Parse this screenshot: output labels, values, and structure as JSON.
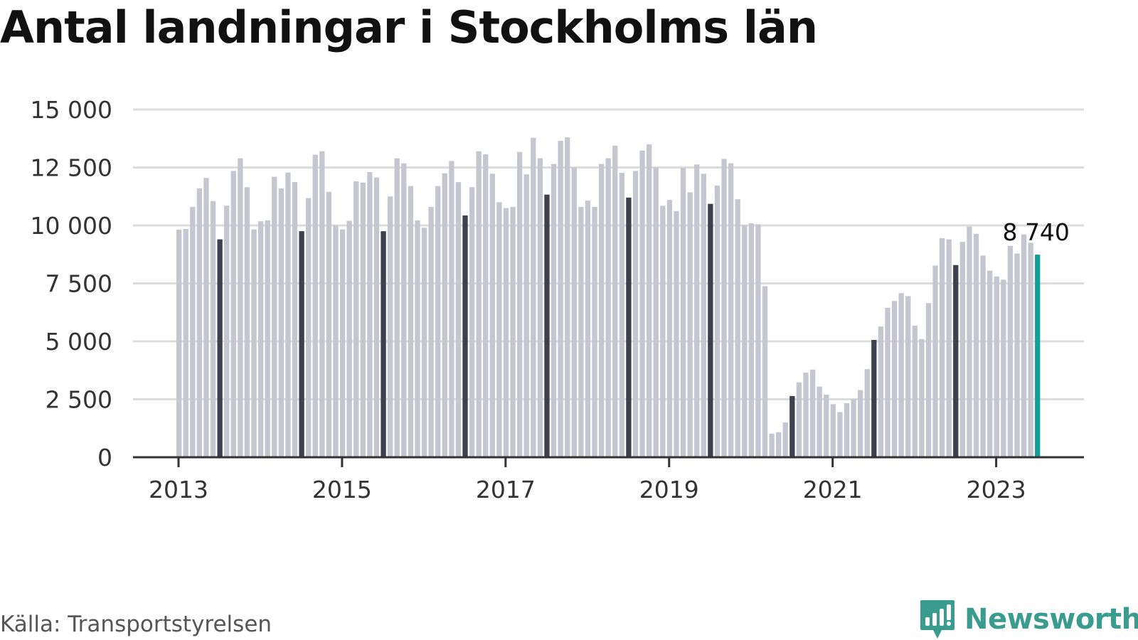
{
  "chart_data": {
    "type": "bar",
    "title": "Antal landningar i Stockholms län",
    "xlabel": "",
    "ylabel": "",
    "start": "2013-01",
    "frequency": "monthly",
    "values": [
      9820,
      9850,
      10800,
      11600,
      12050,
      11050,
      9400,
      10850,
      12350,
      12900,
      11650,
      9830,
      10180,
      10220,
      12100,
      11600,
      12280,
      11870,
      9750,
      11180,
      13050,
      13200,
      11450,
      10000,
      9830,
      10200,
      11900,
      11850,
      12300,
      12070,
      9750,
      11250,
      12900,
      12680,
      11700,
      10220,
      9900,
      10800,
      11700,
      12250,
      12780,
      11870,
      10430,
      11650,
      13200,
      13070,
      12230,
      11000,
      10750,
      10800,
      13170,
      12200,
      13780,
      12900,
      11330,
      12650,
      13650,
      13800,
      12500,
      10800,
      11070,
      10800,
      12650,
      12900,
      13440,
      12270,
      11200,
      12350,
      13230,
      13500,
      12500,
      10850,
      11100,
      10620,
      12480,
      11430,
      12630,
      12230,
      10930,
      11720,
      12870,
      12680,
      11130,
      10010,
      10090,
      10050,
      7380,
      1020,
      1080,
      1500,
      2640,
      3230,
      3650,
      3780,
      3050,
      2700,
      2290,
      1950,
      2330,
      2500,
      2900,
      3800,
      5060,
      5640,
      6450,
      6740,
      7080,
      6950,
      5680,
      5100,
      6650,
      8270,
      9450,
      9400,
      8290,
      9290,
      9950,
      9640,
      8700,
      8050,
      7800,
      7660,
      9120,
      8790,
      9610,
      9250,
      8740
    ],
    "highlight_month": 7,
    "latest_label": "8 740",
    "ylim": [
      0,
      15000
    ],
    "yticks": [
      0,
      2500,
      5000,
      7500,
      10000,
      12500,
      15000
    ],
    "ytick_labels": [
      "0",
      "2 500",
      "5 000",
      "7 500",
      "10 000",
      "12 500",
      "15 000"
    ],
    "xticks": [
      "2013",
      "2015",
      "2017",
      "2019",
      "2021",
      "2023"
    ],
    "xlim_months": 140,
    "grid": true,
    "colors": {
      "bar": "#c6c6d1",
      "highlight": "#3f3f4d",
      "latest": "#159e98",
      "grid": "#dcdcdc",
      "axis": "#333333",
      "tick_text": "#333333"
    }
  },
  "source": "Källa: Transportstyrelsen",
  "brand": {
    "name": "Newsworthy",
    "icon": "bar-chart-bubble-icon",
    "color": "#3a9c8f"
  }
}
